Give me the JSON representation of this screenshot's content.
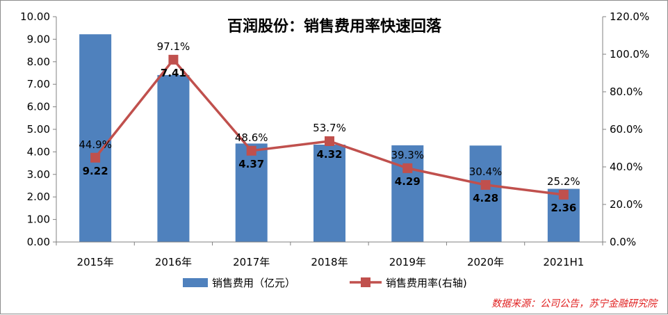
{
  "chart_data": {
    "type": "bar+line",
    "title": "百润股份：销售费用率快速回落",
    "categories": [
      "2015年",
      "2016年",
      "2017年",
      "2018年",
      "2019年",
      "2020年",
      "2021H1"
    ],
    "series": [
      {
        "name": "销售费用（亿元）",
        "type": "bar",
        "axis": "left",
        "values": [
          9.22,
          7.41,
          4.37,
          4.32,
          4.29,
          4.28,
          2.36
        ],
        "labels": [
          "9.22",
          "7.41",
          "4.37",
          "4.32",
          "4.29",
          "4.28",
          "2.36"
        ],
        "color": "#4f81bd"
      },
      {
        "name": "销售费用率(右轴)",
        "type": "line",
        "axis": "right",
        "values": [
          44.9,
          97.1,
          48.6,
          53.7,
          39.3,
          30.4,
          25.2
        ],
        "labels": [
          "44.9%",
          "97.1%",
          "48.6%",
          "53.7%",
          "39.3%",
          "30.4%",
          "25.2%"
        ],
        "color": "#c0504d"
      }
    ],
    "y_left": {
      "lim": [
        0,
        10
      ],
      "ticks": [
        "0.00",
        "1.00",
        "2.00",
        "3.00",
        "4.00",
        "5.00",
        "6.00",
        "7.00",
        "8.00",
        "9.00",
        "10.00"
      ]
    },
    "y_right": {
      "lim": [
        0,
        120
      ],
      "ticks": [
        "0.0%",
        "20.0%",
        "40.0%",
        "60.0%",
        "80.0%",
        "100.0%",
        "120.0%"
      ]
    },
    "grid": false,
    "legend_position": "bottom"
  },
  "source": "数据来源：公司公告，苏宁金融研究院"
}
